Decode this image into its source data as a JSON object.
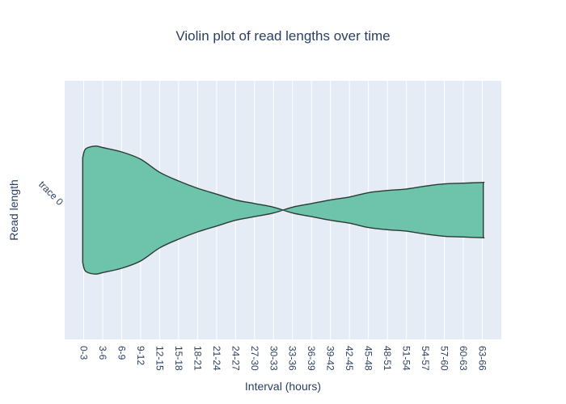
{
  "chart_data": {
    "type": "violin",
    "title": "Violin plot of read lengths over time",
    "xlabel": "Interval (hours)",
    "ylabel": "Read length",
    "y_categories": [
      "trace 0"
    ],
    "categories": [
      "0-3",
      "3-6",
      "6-9",
      "9-12",
      "12-15",
      "15-18",
      "18-21",
      "21-24",
      "24-27",
      "27-30",
      "30-33",
      "33-36",
      "36-39",
      "39-42",
      "42-45",
      "45-48",
      "48-51",
      "51-54",
      "54-57",
      "57-60",
      "60-63",
      "63-66"
    ],
    "x_range": [
      -1,
      22
    ],
    "half_width": [
      [
        -0.05,
        0.72
      ],
      [
        0.1,
        0.84
      ],
      [
        0.6,
        0.88
      ],
      [
        1.0,
        0.86
      ],
      [
        2.0,
        0.8
      ],
      [
        3.0,
        0.7
      ],
      [
        4.0,
        0.52
      ],
      [
        5.0,
        0.4
      ],
      [
        6.0,
        0.3
      ],
      [
        7.0,
        0.22
      ],
      [
        8.0,
        0.14
      ],
      [
        9.0,
        0.09
      ],
      [
        10.0,
        0.04
      ],
      [
        11.0,
        -0.04
      ],
      [
        12.0,
        -0.09
      ],
      [
        13.0,
        -0.14
      ],
      [
        14.0,
        -0.18
      ],
      [
        15.0,
        -0.24
      ],
      [
        16.0,
        -0.27
      ],
      [
        17.0,
        -0.29
      ],
      [
        18.0,
        -0.33
      ],
      [
        19.0,
        -0.36
      ],
      [
        20.0,
        -0.37
      ],
      [
        21.0,
        -0.38
      ],
      [
        21.05,
        -0.38
      ]
    ],
    "series": [
      {
        "color": "#66c2a5",
        "line_color": "#2a3a34"
      }
    ],
    "grid": true,
    "legend": false
  }
}
